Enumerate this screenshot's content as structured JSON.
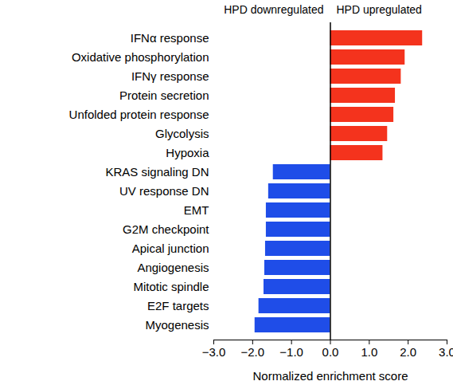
{
  "chart_data": {
    "type": "bar",
    "orientation": "horizontal",
    "annotations": [
      "HPD downregulated",
      "HPD upregulated"
    ],
    "categories": [
      "IFNα response",
      "Oxidative phosphorylation",
      "IFNγ response",
      "Protein secretion",
      "Unfolded protein response",
      "Glycolysis",
      "Hypoxia",
      "KRAS signaling DN",
      "UV response DN",
      "EMT",
      "G2M checkpoint",
      "Apical junction",
      "Angiogenesis",
      "Mitotic spindle",
      "E2F targets",
      "Myogenesis"
    ],
    "values": [
      2.37,
      1.92,
      1.82,
      1.67,
      1.63,
      1.47,
      1.35,
      -1.47,
      -1.59,
      -1.65,
      -1.65,
      -1.67,
      -1.69,
      -1.71,
      -1.84,
      -1.94
    ],
    "colors": [
      "#f4331d",
      "#f4331d",
      "#f4331d",
      "#f4331d",
      "#f4331d",
      "#f4331d",
      "#f4331d",
      "#1f4de8",
      "#1f4de8",
      "#1f4de8",
      "#1f4de8",
      "#1f4de8",
      "#1f4de8",
      "#1f4de8",
      "#1f4de8",
      "#1f4de8"
    ],
    "xlabel": "Normalized enrichment score",
    "xlim": [
      -3,
      3
    ],
    "xticks": [
      -3,
      -2,
      -1,
      0,
      1,
      2,
      3
    ],
    "grid": false
  }
}
